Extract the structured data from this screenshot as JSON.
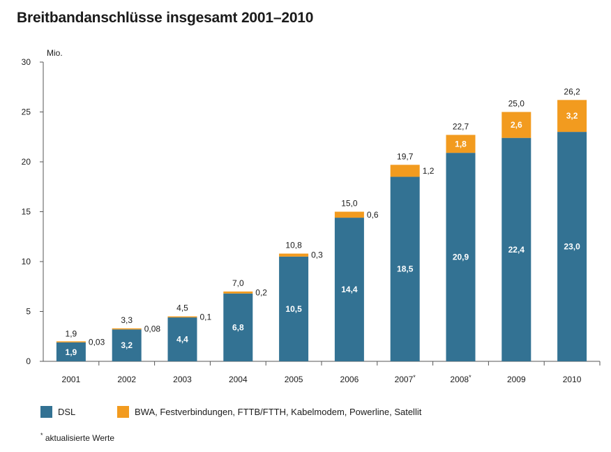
{
  "title": "Breitbandanschlüsse insgesamt 2001–2010",
  "colors": {
    "dsl": "#337293",
    "bwa": "#f29b1f",
    "axis": "#555555"
  },
  "chart_data": {
    "type": "bar",
    "stacked": true,
    "unit_label": "Mio.",
    "ylim": [
      0,
      30
    ],
    "yticks": [
      0,
      5,
      10,
      15,
      20,
      25,
      30
    ],
    "categories": [
      "2001",
      "2002",
      "2003",
      "2004",
      "2005",
      "2006",
      "2007*",
      "2008*",
      "2009",
      "2010"
    ],
    "series": [
      {
        "name": "DSL",
        "values": [
          1.9,
          3.2,
          4.4,
          6.8,
          10.5,
          14.4,
          18.5,
          20.9,
          22.4,
          23.0
        ],
        "labels": [
          "1,9",
          "3,2",
          "4,4",
          "6,8",
          "10,5",
          "14,4",
          "18,5",
          "20,9",
          "22,4",
          "23,0"
        ]
      },
      {
        "name": "BWA, Festverbindungen, FTTB/FTTH, Kabelmodem, Powerline, Satellit",
        "values": [
          0.03,
          0.08,
          0.1,
          0.2,
          0.3,
          0.6,
          1.2,
          1.8,
          2.6,
          3.2
        ],
        "labels": [
          "0,03",
          "0,08",
          "0,1",
          "0,2",
          "0,3",
          "0,6",
          "1,2",
          "1,8",
          "2,6",
          "3,2"
        ]
      }
    ],
    "totals": [
      1.9,
      3.3,
      4.5,
      7.0,
      10.8,
      15.0,
      19.7,
      22.7,
      25.0,
      26.2
    ],
    "total_labels": [
      "1,9",
      "3,3",
      "4,5",
      "7,0",
      "10,8",
      "15,0",
      "19,7",
      "22,7",
      "25,0",
      "26,2"
    ],
    "legend_position": "bottom-left"
  },
  "legend": {
    "dsl_label": "DSL",
    "other_label": "BWA, Festverbindungen, FTTB/FTTH, Kabelmodem, Powerline, Satellit"
  },
  "footnote": {
    "marker": "*",
    "text": "aktualisierte Werte"
  }
}
